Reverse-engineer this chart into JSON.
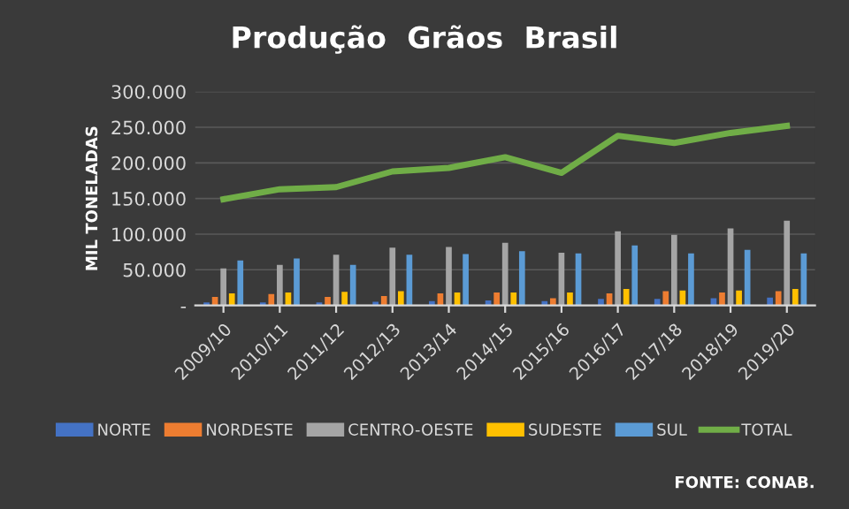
{
  "chart_data": {
    "type": "bar",
    "title": "Produção  Grãos  Brasil",
    "ylabel": "MIL TONELADAS",
    "categories": [
      "2009/10",
      "2010/11",
      "2011/12",
      "2012/13",
      "2013/14",
      "2014/15",
      "2015/16",
      "2016/17",
      "2017/18",
      "2018/19",
      "2019/20"
    ],
    "series": [
      {
        "name": "NORTE",
        "color": "#4472c4",
        "values": [
          4000,
          4000,
          4000,
          5000,
          6000,
          7000,
          6000,
          9000,
          9000,
          10000,
          11000
        ]
      },
      {
        "name": "NORDESTE",
        "color": "#ed7d31",
        "values": [
          12000,
          16000,
          12000,
          13000,
          17000,
          18000,
          10000,
          17000,
          20000,
          18000,
          20000
        ]
      },
      {
        "name": "CENTRO-OESTE",
        "color": "#a5a5a5",
        "values": [
          52000,
          57000,
          71000,
          81000,
          82000,
          88000,
          74000,
          104000,
          99000,
          108000,
          119000
        ]
      },
      {
        "name": "SUDESTE",
        "color": "#ffc000",
        "values": [
          17000,
          18000,
          19000,
          20000,
          18000,
          18000,
          18000,
          23000,
          21000,
          21000,
          23000
        ]
      },
      {
        "name": "SUL",
        "color": "#5b9bd5",
        "values": [
          63000,
          66000,
          57000,
          71000,
          72000,
          76000,
          73000,
          84000,
          73000,
          78000,
          73000
        ]
      },
      {
        "name": "TOTAL",
        "type": "line",
        "color": "#70ad47",
        "values": [
          149000,
          163000,
          166000,
          188000,
          193000,
          208000,
          186000,
          238000,
          228000,
          242000,
          252000
        ]
      }
    ],
    "ylim": [
      0,
      300000
    ],
    "yticks": [
      {
        "value": 0,
        "label": "-"
      },
      {
        "value": 50000,
        "label": "50.000"
      },
      {
        "value": 100000,
        "label": "100.000"
      },
      {
        "value": 150000,
        "label": "150.000"
      },
      {
        "value": 200000,
        "label": "200.000"
      },
      {
        "value": 250000,
        "label": "250.000"
      },
      {
        "value": 300000,
        "label": "300.000"
      }
    ],
    "grid": "y",
    "legend": "bottom",
    "annotations": [
      "FONTE: CONAB."
    ]
  }
}
